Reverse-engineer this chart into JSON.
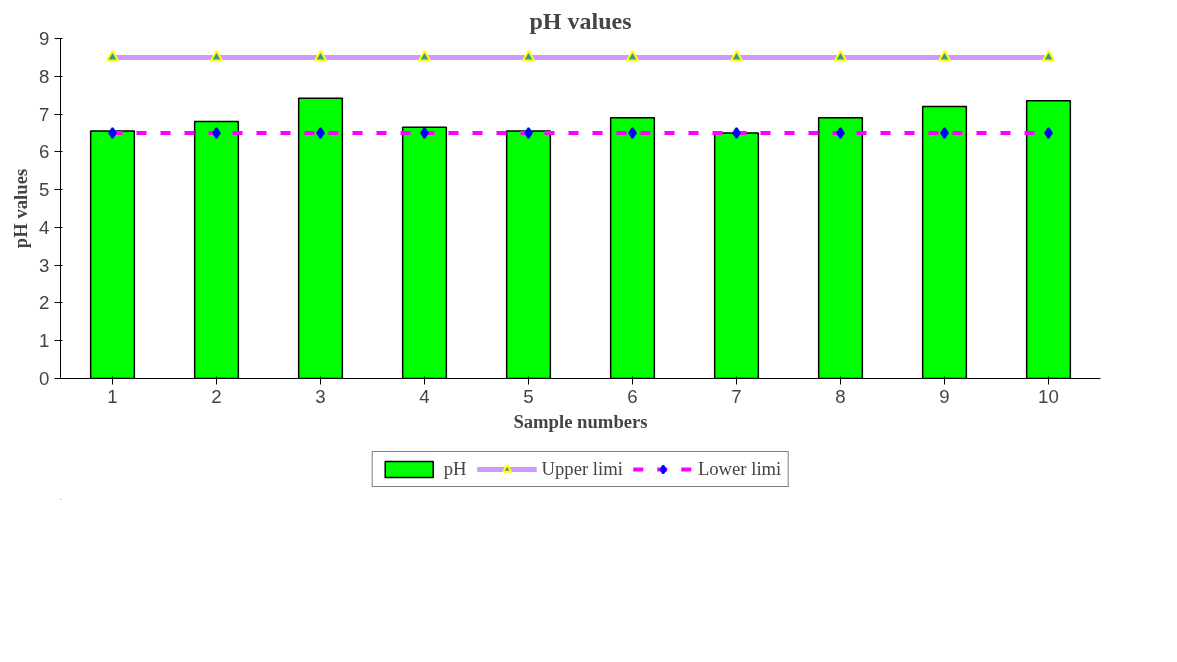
{
  "chart_data": {
    "type": "bar",
    "title": "pH values",
    "xlabel": "Sample numbers",
    "ylabel": "pH values",
    "categories": [
      "1",
      "2",
      "3",
      "4",
      "5",
      "6",
      "7",
      "8",
      "9",
      "10"
    ],
    "series": [
      {
        "name": "pH",
        "color": "#00ff00",
        "values": [
          6.55,
          6.8,
          7.42,
          6.65,
          6.55,
          6.9,
          6.5,
          6.9,
          7.2,
          7.35
        ]
      },
      {
        "name": "Upper limi",
        "type": "line",
        "color": "#cc99ff",
        "marker": "triangle",
        "line_style": "solid",
        "values": [
          8.5,
          8.5,
          8.5,
          8.5,
          8.5,
          8.5,
          8.5,
          8.5,
          8.5,
          8.5
        ]
      },
      {
        "name": "Lower limi",
        "type": "line",
        "color": "#ff00ff",
        "marker": "diamond",
        "line_style": "dashed",
        "values": [
          6.5,
          6.5,
          6.5,
          6.5,
          6.5,
          6.5,
          6.5,
          6.5,
          6.5,
          6.5
        ]
      }
    ],
    "ylim": [
      0,
      9
    ],
    "yticks": [
      0,
      1,
      2,
      3,
      4,
      5,
      6,
      7,
      8,
      9
    ],
    "grid": false,
    "legend": "bottom"
  }
}
